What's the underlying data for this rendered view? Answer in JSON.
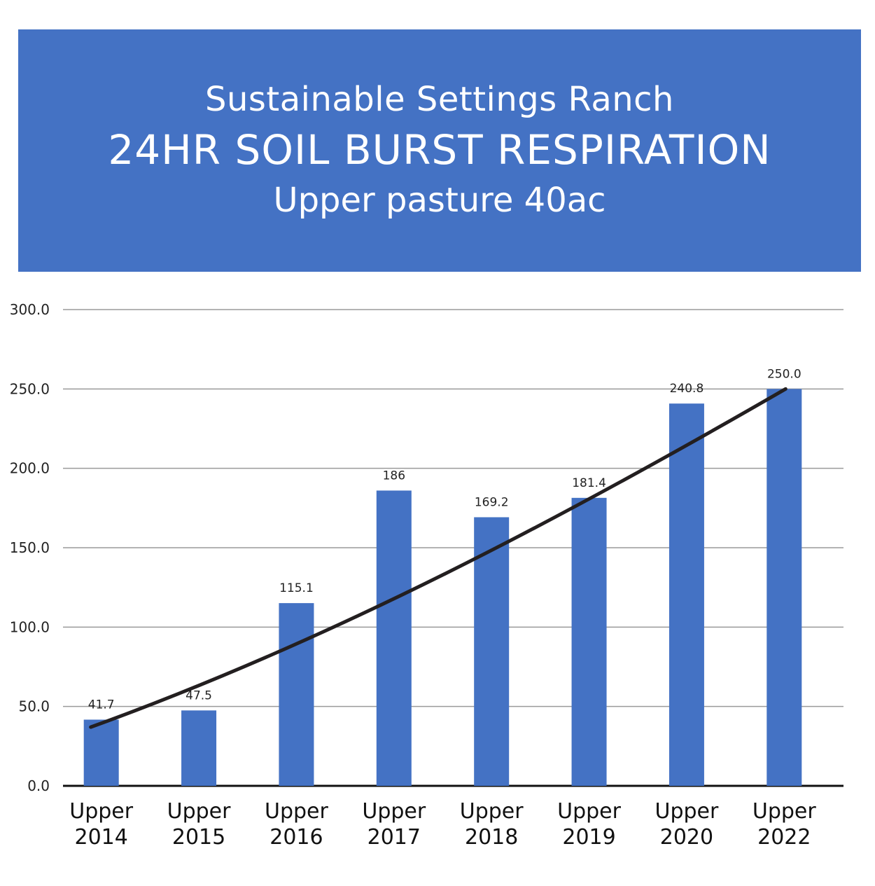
{
  "header": {
    "line1": "Sustainable Settings Ranch",
    "line2": "24HR SOIL BURST RESPIRATION",
    "line3": "Upper pasture 40ac",
    "background_color": "#4472C4",
    "text_color": "#FFFFFF"
  },
  "chart_data": {
    "type": "bar",
    "title": "24HR SOIL BURST RESPIRATION",
    "categories": [
      "Upper 2014",
      "Upper 2015",
      "Upper 2016",
      "Upper 2017",
      "Upper 2018",
      "Upper 2019",
      "Upper 2020",
      "Upper 2022"
    ],
    "category_lines": [
      [
        "Upper",
        "2014"
      ],
      [
        "Upper",
        "2015"
      ],
      [
        "Upper",
        "2016"
      ],
      [
        "Upper",
        "2017"
      ],
      [
        "Upper",
        "2018"
      ],
      [
        "Upper",
        "2019"
      ],
      [
        "Upper",
        "2020"
      ],
      [
        "Upper",
        "2022"
      ]
    ],
    "values": [
      41.7,
      47.5,
      115.1,
      186,
      169.2,
      181.4,
      240.8,
      250.0
    ],
    "value_labels": [
      "41.7",
      "47.5",
      "115.1",
      "186",
      "169.2",
      "181.4",
      "240.8",
      "250.0"
    ],
    "ylim": [
      0,
      300
    ],
    "yticks": [
      0,
      50,
      100,
      150,
      200,
      250,
      300
    ],
    "ytick_labels": [
      "0.0",
      "50.0",
      "100.0",
      "150.0",
      "200.0",
      "250.0",
      "300.0"
    ],
    "xlabel": "",
    "ylabel": "",
    "grid": true,
    "legend": "none",
    "bar_color": "#4472C4",
    "trendline": {
      "type": "polynomial",
      "color": "#231F20",
      "start_value": 37,
      "end_value": 250
    }
  }
}
